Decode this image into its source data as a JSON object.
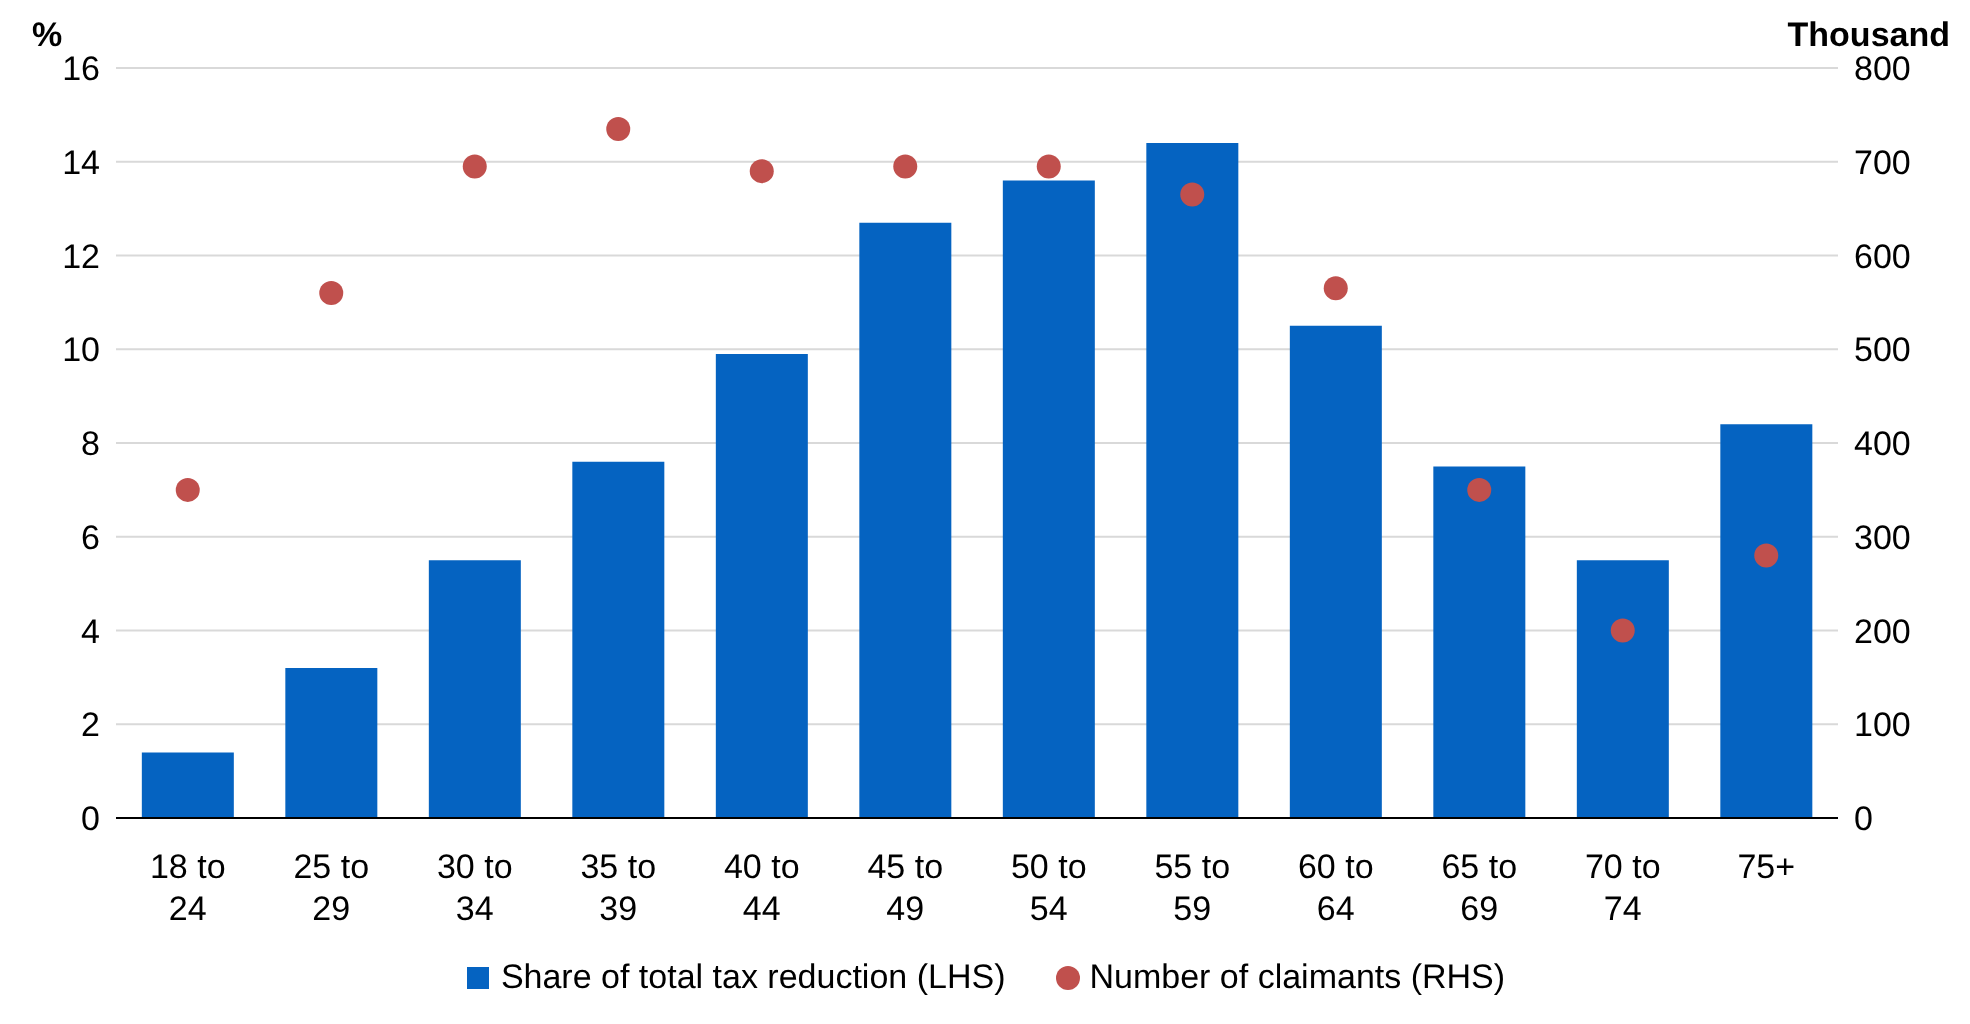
{
  "chart_data": {
    "type": "bar",
    "ylabel": "%",
    "y2label": "Thousand",
    "categories": [
      "18 to 24",
      "25 to 29",
      "30 to 34",
      "35 to 39",
      "40 to 44",
      "45 to 49",
      "50 to 54",
      "55 to 59",
      "60 to 64",
      "65 to 69",
      "70 to 74",
      "75+"
    ],
    "series": [
      {
        "name": "Share of total tax reduction (LHS)",
        "color": "#0563c1",
        "values": [
          1.4,
          3.2,
          5.5,
          7.6,
          9.9,
          12.7,
          13.6,
          14.4,
          10.5,
          7.5,
          5.5,
          8.4
        ]
      },
      {
        "name": "Number of claimants (RHS)",
        "type": "scatter",
        "axis": "y2",
        "marker": "circle",
        "color": "#c0504d",
        "values": [
          350,
          560,
          695,
          735,
          690,
          695,
          695,
          665,
          565,
          350,
          200,
          280
        ]
      }
    ],
    "ylim": [
      0,
      16
    ],
    "yticks": [
      0,
      2,
      4,
      6,
      8,
      10,
      12,
      14,
      16
    ],
    "y2lim": [
      0,
      800
    ],
    "y2ticks": [
      0,
      100,
      200,
      300,
      400,
      500,
      600,
      700,
      800
    ],
    "grid": "y",
    "legend": "bottom"
  }
}
